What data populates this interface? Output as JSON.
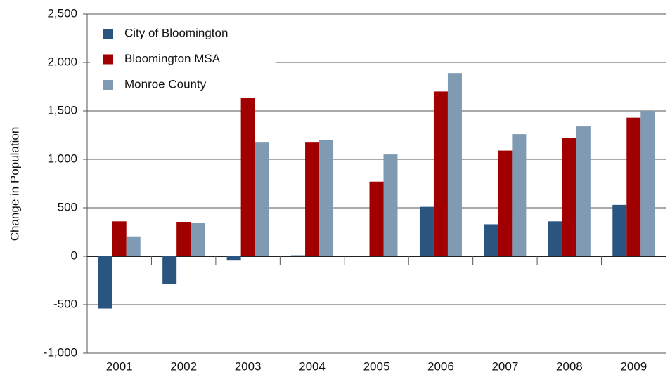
{
  "chart_data": {
    "type": "bar",
    "y_label": "Change in Population",
    "categories": [
      "2001",
      "2002",
      "2003",
      "2004",
      "2005",
      "2006",
      "2007",
      "2008",
      "2009"
    ],
    "series": [
      {
        "name": "City of Bloomington",
        "color": "#2a5580",
        "values": [
          -540,
          -290,
          -45,
          10,
          0,
          510,
          330,
          360,
          530
        ]
      },
      {
        "name": "Bloomington MSA",
        "color": "#a00000",
        "values": [
          360,
          355,
          1640,
          1180,
          770,
          1700,
          1090,
          1220,
          1430
        ]
      },
      {
        "name": "Monroe County",
        "color": "#7f9ab3",
        "values": [
          205,
          345,
          1180,
          1200,
          1050,
          1890,
          1260,
          1340,
          1500
        ]
      }
    ],
    "ylim": [
      -1000,
      2500
    ],
    "yticks": [
      {
        "value": -1000,
        "label": "-1,000"
      },
      -500,
      0,
      500,
      {
        "value": 1000,
        "label": "1,000"
      },
      {
        "value": 1500,
        "label": "1,500"
      },
      {
        "value": 2000,
        "label": "2,000"
      },
      {
        "value": 2500,
        "label": "2,500"
      }
    ],
    "grid": true,
    "legend": "top-left"
  }
}
